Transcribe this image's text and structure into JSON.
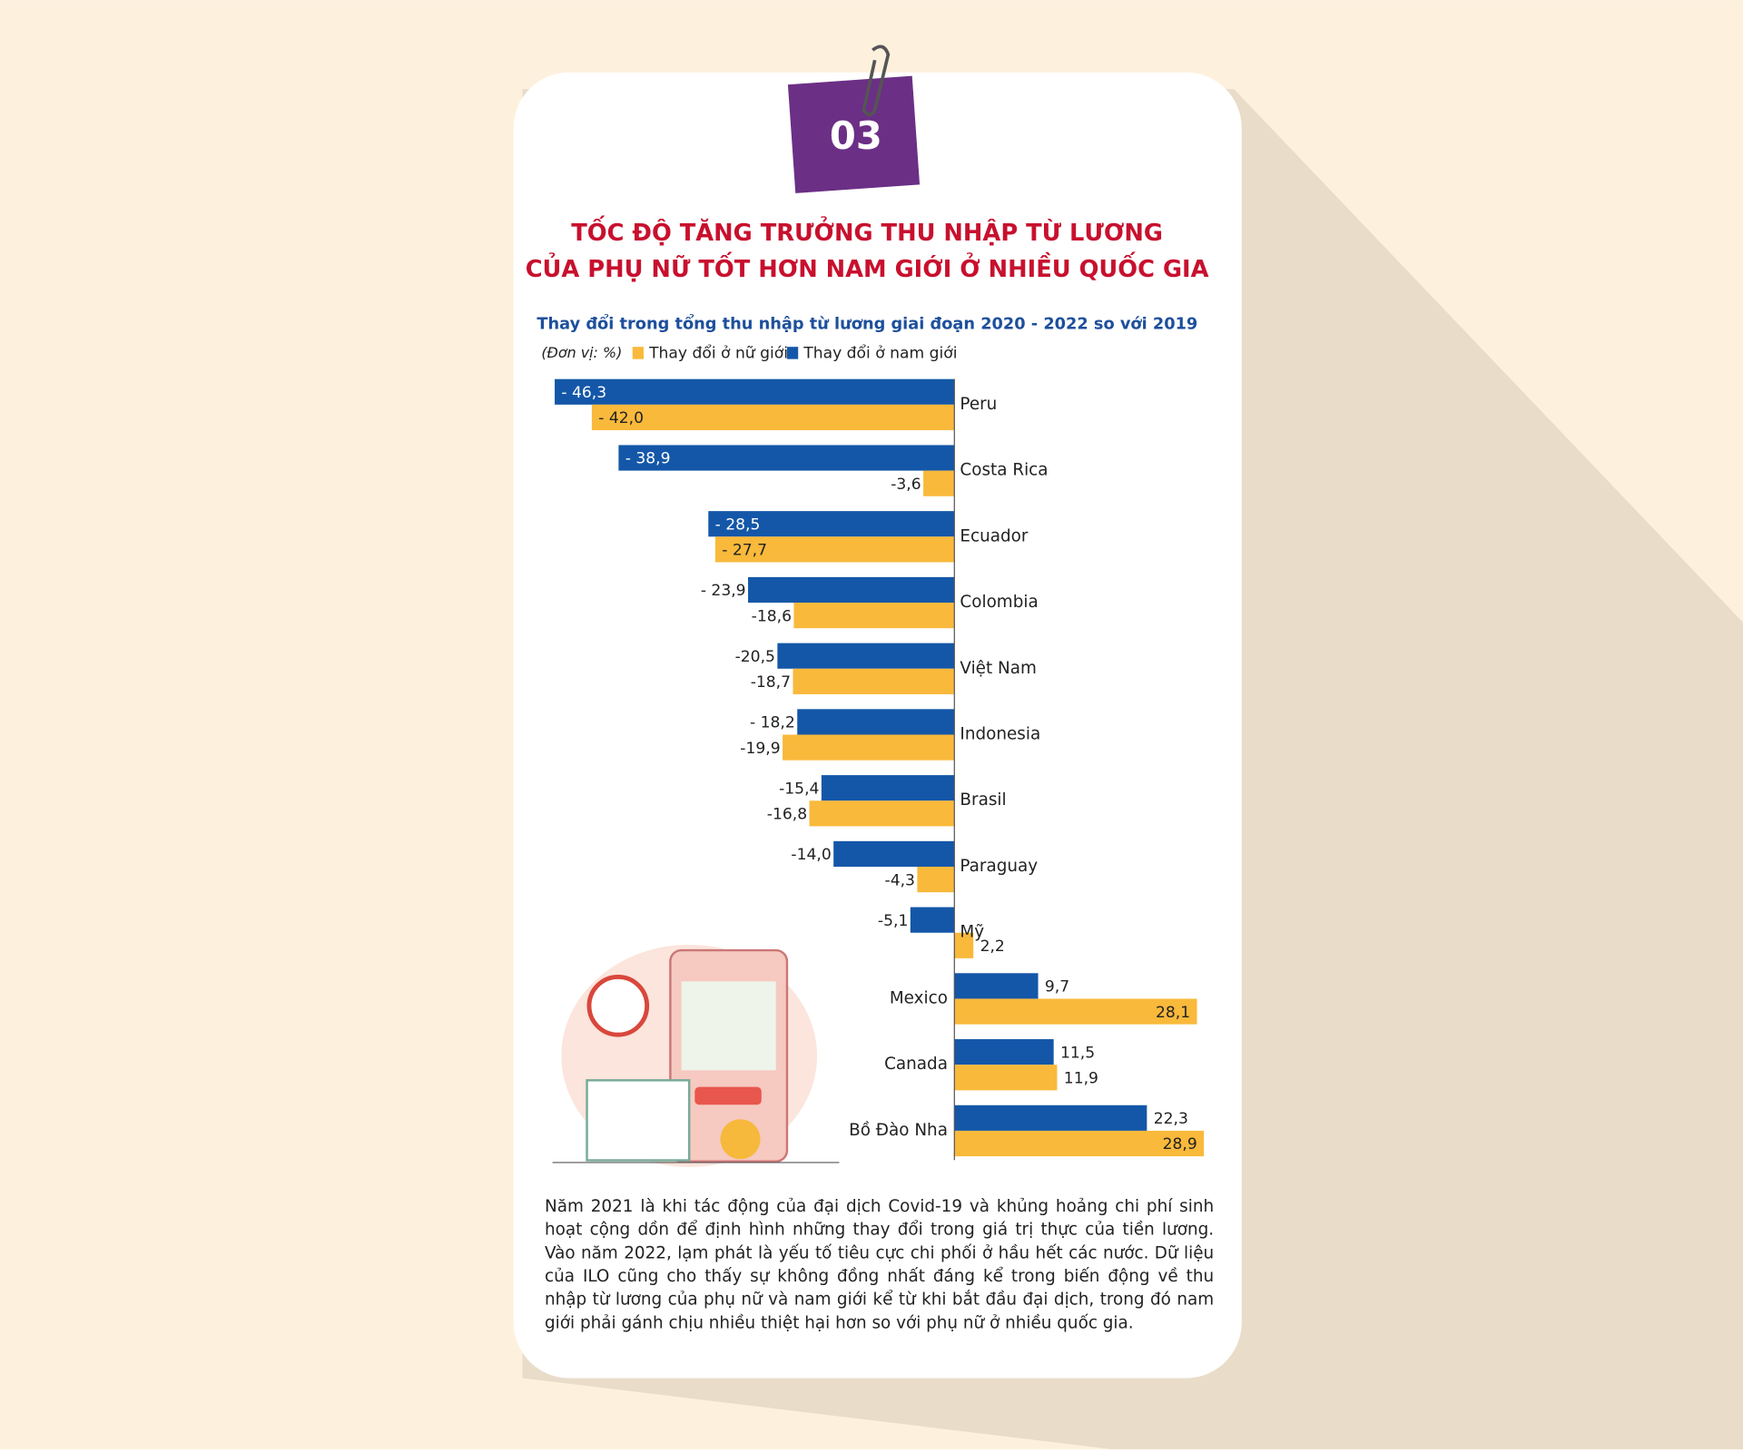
{
  "badge": "03",
  "chart_data": {
    "type": "bar",
    "orientation": "horizontal",
    "title": [
      "TỐC ĐỘ TĂNG TRƯỞNG THU NHẬP TỪ LƯƠNG",
      "CỦA PHỤ NỮ TỐT HƠN NAM GIỚI Ở NHIỀU QUỐC GIA"
    ],
    "subtitle": "Thay đổi trong tổng thu nhập từ lương giai đoạn 2020 - 2022 so với 2019",
    "unit": "(Đơn vị: %)",
    "categories": [
      "Peru",
      "Costa Rica",
      "Ecuador",
      "Colombia",
      "Việt Nam",
      "Indonesia",
      "Brasil",
      "Paraguay",
      "Mỹ",
      "Mexico",
      "Canada",
      "Bồ Đào Nha"
    ],
    "series": [
      {
        "name": "Thay đổi ở nữ giới",
        "color": "#f9b93b",
        "values": [
          -42.0,
          -3.6,
          -27.7,
          -18.6,
          -18.7,
          -19.9,
          -16.8,
          -4.3,
          2.2,
          28.1,
          11.9,
          28.9
        ],
        "value_labels": [
          "- 42,0",
          "-3,6",
          "- 27,7",
          "-18,6",
          "-18,7",
          "-19,9",
          "-16,8",
          "-4,3",
          "2,2",
          "28,1",
          "11,9",
          "28,9"
        ]
      },
      {
        "name": "Thay đổi ở nam giới",
        "color": "#1457a8",
        "values": [
          -46.3,
          -38.9,
          -28.5,
          -23.9,
          -20.5,
          -18.2,
          -15.4,
          -14.0,
          -5.1,
          9.7,
          11.5,
          22.3
        ],
        "value_labels": [
          "- 46,3",
          "- 38,9",
          "- 28,5",
          "- 23,9",
          "-20,5",
          "- 18,2",
          "-15,4",
          "-14,0",
          "-5,1",
          "9,7",
          "11,5",
          "22,3"
        ]
      }
    ],
    "xlim": [
      -46.3,
      28.9
    ]
  },
  "body_text": "Năm 2021 là khi tác động của đại dịch Covid-19 và khủng hoảng chi phí sinh hoạt cộng dồn để định hình những thay đổi trong giá trị thực của tiền lương. Vào năm 2022, lạm phát là yếu tố tiêu cực chi phối ở hầu hết các nước. Dữ liệu của ILO cũng cho thấy sự không đồng nhất đáng kể trong biến động về thu nhập từ lương của phụ nữ và nam giới kể từ khi bắt đầu đại dịch, trong đó nam giới phải gánh chịu nhiều thiệt hại hơn so với phụ nữ ở nhiều quốc gia."
}
